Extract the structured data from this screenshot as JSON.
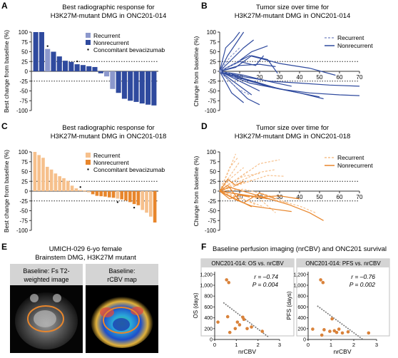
{
  "panels": {
    "A": {
      "letter": "A",
      "title_lines": [
        "Best radiographic response for",
        "H3K27M-mutant DMG in ONC201-014"
      ]
    },
    "B": {
      "letter": "B",
      "title_lines": [
        "Tumor size over time for",
        "H3K27M-mutant DMG in ONC201-014"
      ]
    },
    "C": {
      "letter": "C",
      "title_lines": [
        "Best radiographic response for",
        "H3K27M-mutant DMG in ONC201-018"
      ]
    },
    "D": {
      "letter": "D",
      "title_lines": [
        "Tumor size over time for",
        "H3K27M-mutant DMG in ONC201-018"
      ]
    },
    "E": {
      "letter": "E",
      "title_lines": [
        "UMICH-029 6-yo female",
        "Brainstem DMG, H3K27M mutant"
      ],
      "image_labels": [
        [
          "Baseline: Fs T2-",
          "weighted image"
        ],
        [
          "Baseline:",
          "rCBV map"
        ]
      ]
    },
    "F": {
      "letter": "F",
      "title": "Baseline perfusion imaging (nrCBV) and ONC201 survival"
    }
  },
  "colors": {
    "blue_recurrent": "#8c98cc",
    "blue_nonrecurrent": "#2f4a9e",
    "orange_recurrent": "#f6c08c",
    "orange_nonrecurrent": "#e8862c",
    "scatter_point": "#d9823a",
    "trend_line": "#777777",
    "grey_header": "#d4d4d4"
  },
  "chart_data": [
    {
      "id": "A",
      "type": "bar",
      "ylabel": "Best change from baseline (%)",
      "ylim": [
        -100,
        100
      ],
      "yticks": [
        100,
        75,
        50,
        25,
        0,
        -25,
        -50,
        -75,
        -100
      ],
      "reference_lines": [
        25,
        -25
      ],
      "legend": {
        "position": "top-right",
        "entries": [
          {
            "name": "Recurrent",
            "marker": "square",
            "color_key": "blue_recurrent"
          },
          {
            "name": "Nonrecurrent",
            "marker": "square",
            "color_key": "blue_nonrecurrent"
          },
          {
            "name": "Concomitant bevacizumab",
            "marker": "dot"
          }
        ]
      },
      "values": [
        100,
        100,
        57,
        50,
        38,
        27,
        24,
        18,
        16,
        13,
        11,
        -5,
        -13,
        -45,
        -55,
        -70,
        -75,
        -78,
        -82,
        -85,
        -87
      ],
      "groups": [
        "N",
        "N",
        "R",
        "N",
        "N",
        "N",
        "N",
        "N",
        "N",
        "N",
        "N",
        "N",
        "R",
        "R",
        "N",
        "N",
        "N",
        "N",
        "N",
        "N",
        "N"
      ],
      "bevacizumab": [
        2,
        7
      ]
    },
    {
      "id": "B",
      "type": "line",
      "ylabel": "Change from baseline (%)",
      "xlim": [
        0,
        70
      ],
      "ylim": [
        -100,
        100
      ],
      "xticks": [
        10,
        20,
        30,
        40,
        50,
        60,
        70
      ],
      "yticks": [
        100,
        75,
        50,
        25,
        0,
        -25,
        -50,
        -75,
        -100
      ],
      "reference_lines": [
        25,
        -25
      ],
      "legend": {
        "position": "top-right",
        "entries": [
          {
            "name": "Recurrent",
            "style": "dashed",
            "color_key": "blue_recurrent"
          },
          {
            "name": "Nonrecurrent",
            "style": "solid",
            "color_key": "blue_nonrecurrent"
          }
        ]
      },
      "series": [
        {
          "group": "N",
          "x": [
            0,
            4,
            8,
            12
          ],
          "y": [
            0,
            40,
            70,
            100
          ]
        },
        {
          "group": "N",
          "x": [
            0,
            3,
            7,
            10
          ],
          "y": [
            0,
            60,
            80,
            100
          ]
        },
        {
          "group": "N",
          "x": [
            0,
            6,
            12,
            17
          ],
          "y": [
            0,
            30,
            60,
            80
          ]
        },
        {
          "group": "N",
          "x": [
            0,
            8,
            16,
            24
          ],
          "y": [
            0,
            20,
            50,
            65
          ]
        },
        {
          "group": "N",
          "x": [
            0,
            8,
            16,
            24,
            29
          ],
          "y": [
            0,
            10,
            40,
            30,
            -5
          ]
        },
        {
          "group": "N",
          "x": [
            0,
            10,
            18,
            22
          ],
          "y": [
            0,
            25,
            15,
            40
          ]
        },
        {
          "group": "N",
          "x": [
            0,
            10,
            20,
            28
          ],
          "y": [
            0,
            15,
            18,
            12
          ]
        },
        {
          "group": "N",
          "x": [
            0,
            10,
            20
          ],
          "y": [
            0,
            -25,
            -50
          ]
        },
        {
          "group": "N",
          "x": [
            0,
            8,
            14,
            20
          ],
          "y": [
            0,
            -40,
            -70,
            -85
          ]
        },
        {
          "group": "N",
          "x": [
            0,
            6,
            12
          ],
          "y": [
            0,
            -55,
            -80
          ]
        },
        {
          "group": "N",
          "x": [
            0,
            8,
            16
          ],
          "y": [
            0,
            -30,
            -60
          ]
        },
        {
          "group": "N",
          "x": [
            0,
            15,
            30,
            45,
            58
          ],
          "y": [
            0,
            40,
            20,
            8,
            -10
          ]
        },
        {
          "group": "N",
          "x": [
            0,
            15,
            30,
            45,
            60,
            70
          ],
          "y": [
            0,
            -30,
            -45,
            -55,
            -60,
            -62
          ]
        },
        {
          "group": "N",
          "x": [
            0,
            15,
            30,
            40,
            52
          ],
          "y": [
            0,
            -25,
            -45,
            -55,
            -70
          ]
        },
        {
          "group": "N",
          "x": [
            0,
            10,
            25,
            40,
            55,
            70
          ],
          "y": [
            0,
            -12,
            -25,
            -30,
            -35,
            -38
          ]
        },
        {
          "group": "N",
          "x": [
            0,
            12,
            22,
            35,
            50
          ],
          "y": [
            0,
            -20,
            -35,
            -50,
            -65
          ]
        },
        {
          "group": "N",
          "x": [
            0,
            10,
            20,
            30
          ],
          "y": [
            0,
            -15,
            -30,
            -45
          ]
        },
        {
          "group": "N",
          "x": [
            0,
            12,
            24,
            36
          ],
          "y": [
            0,
            -10,
            -25,
            -38
          ]
        },
        {
          "group": "R",
          "x": [
            0,
            5,
            10
          ],
          "y": [
            0,
            35,
            60
          ]
        },
        {
          "group": "R",
          "x": [
            0,
            6,
            11
          ],
          "y": [
            0,
            15,
            30
          ]
        },
        {
          "group": "R",
          "x": [
            0,
            4,
            9,
            15
          ],
          "y": [
            0,
            -20,
            -45,
            -60
          ]
        },
        {
          "group": "R",
          "x": [
            0,
            5,
            10
          ],
          "y": [
            0,
            -5,
            -25
          ]
        }
      ]
    },
    {
      "id": "C",
      "type": "bar",
      "ylabel": "Best change from baseline (%)",
      "ylim": [
        -100,
        100
      ],
      "yticks": [
        100,
        75,
        50,
        25,
        0,
        -25,
        -50,
        -75,
        -100
      ],
      "reference_lines": [
        25,
        -25
      ],
      "legend": {
        "position": "top-right",
        "entries": [
          {
            "name": "Recurrent",
            "marker": "square",
            "color_key": "orange_recurrent"
          },
          {
            "name": "Nonrecurrent",
            "marker": "square",
            "color_key": "orange_nonrecurrent"
          },
          {
            "name": "Concomitant bevacizumab",
            "marker": "dot"
          }
        ]
      },
      "values": [
        100,
        92,
        85,
        62,
        55,
        45,
        38,
        33,
        26,
        14,
        7,
        3,
        1,
        -3,
        -8,
        -12,
        -13,
        -14,
        -16,
        -17,
        -19,
        -21,
        -24,
        -28,
        -33,
        -36,
        -48,
        -55,
        -65,
        -80
      ],
      "groups": [
        "R",
        "R",
        "R",
        "R",
        "R",
        "R",
        "R",
        "R",
        "R",
        "R",
        "R",
        "R",
        "N",
        "R",
        "N",
        "N",
        "N",
        "N",
        "N",
        "N",
        "R",
        "N",
        "N",
        "N",
        "N",
        "N",
        "R",
        "R",
        "R",
        "N"
      ],
      "bevacizumab": [
        11,
        20,
        24
      ]
    },
    {
      "id": "D",
      "type": "line",
      "ylabel": "Change from baseline (%)",
      "xlim": [
        0,
        70
      ],
      "ylim": [
        -100,
        100
      ],
      "xticks": [
        10,
        20,
        30,
        40,
        50,
        60,
        70
      ],
      "yticks": [
        100,
        75,
        50,
        25,
        0,
        -25,
        -50,
        -75,
        -100
      ],
      "reference_lines": [
        25,
        -25
      ],
      "legend": {
        "position": "top-right",
        "entries": [
          {
            "name": "Recurrent",
            "style": "dashed",
            "color_key": "orange_recurrent"
          },
          {
            "name": "Nonrecurrent",
            "style": "solid",
            "color_key": "orange_nonrecurrent"
          }
        ]
      },
      "series": [
        {
          "group": "R",
          "x": [
            0,
            4,
            8
          ],
          "y": [
            0,
            45,
            95
          ]
        },
        {
          "group": "R",
          "x": [
            0,
            5,
            9
          ],
          "y": [
            0,
            60,
            85
          ]
        },
        {
          "group": "R",
          "x": [
            0,
            4,
            10
          ],
          "y": [
            0,
            30,
            75
          ]
        },
        {
          "group": "R",
          "x": [
            0,
            6,
            12
          ],
          "y": [
            0,
            35,
            60
          ]
        },
        {
          "group": "R",
          "x": [
            0,
            7,
            14
          ],
          "y": [
            0,
            25,
            50
          ]
        },
        {
          "group": "R",
          "x": [
            0,
            5,
            12,
            20
          ],
          "y": [
            0,
            20,
            38,
            45
          ]
        },
        {
          "group": "R",
          "x": [
            0,
            8,
            16
          ],
          "y": [
            0,
            15,
            28
          ]
        },
        {
          "group": "R",
          "x": [
            0,
            10,
            20,
            30
          ],
          "y": [
            0,
            35,
            70,
            80
          ]
        },
        {
          "group": "R",
          "x": [
            0,
            10,
            20,
            28
          ],
          "y": [
            0,
            25,
            48,
            55
          ]
        },
        {
          "group": "R",
          "x": [
            0,
            12,
            24,
            32
          ],
          "y": [
            0,
            20,
            40,
            38
          ]
        },
        {
          "group": "R",
          "x": [
            0,
            6,
            12,
            18
          ],
          "y": [
            0,
            -10,
            -20,
            -35
          ]
        },
        {
          "group": "R",
          "x": [
            0,
            8,
            16,
            22
          ],
          "y": [
            0,
            -15,
            -28,
            -40
          ]
        },
        {
          "group": "R",
          "x": [
            0,
            10,
            20,
            28
          ],
          "y": [
            0,
            -8,
            -20,
            -55
          ]
        },
        {
          "group": "R",
          "x": [
            0,
            15,
            30,
            40,
            48
          ],
          "y": [
            0,
            -12,
            -25,
            -38,
            -55
          ]
        },
        {
          "group": "R",
          "x": [
            0,
            12,
            24,
            34
          ],
          "y": [
            0,
            5,
            -10,
            -30
          ]
        },
        {
          "group": "N",
          "x": [
            0,
            4,
            8,
            12
          ],
          "y": [
            0,
            30,
            15,
            25
          ]
        },
        {
          "group": "N",
          "x": [
            0,
            5,
            10,
            15
          ],
          "y": [
            0,
            -20,
            -10,
            -15
          ]
        },
        {
          "group": "N",
          "x": [
            0,
            6,
            12,
            20,
            28
          ],
          "y": [
            0,
            -15,
            -30,
            -5,
            -20
          ]
        },
        {
          "group": "N",
          "x": [
            0,
            4,
            10,
            16
          ],
          "y": [
            0,
            15,
            -25,
            -40
          ]
        },
        {
          "group": "N",
          "x": [
            0,
            10,
            20,
            30,
            40
          ],
          "y": [
            0,
            -8,
            -15,
            -12,
            -20
          ]
        },
        {
          "group": "N",
          "x": [
            0,
            12,
            25,
            35,
            45,
            52
          ],
          "y": [
            0,
            -10,
            -20,
            -35,
            -55,
            -75
          ]
        },
        {
          "group": "N",
          "x": [
            0,
            8,
            16,
            26,
            36
          ],
          "y": [
            0,
            -22,
            -38,
            -45,
            -52
          ]
        },
        {
          "group": "N",
          "x": [
            0,
            5,
            15,
            25
          ],
          "y": [
            0,
            10,
            -5,
            -20
          ]
        }
      ]
    },
    {
      "id": "F1",
      "type": "scatter",
      "title": "ONC201-014: OS vs. nrCBV",
      "xlabel": "nrCBV",
      "ylabel": "OS (days)",
      "xlim": [
        0,
        3
      ],
      "ylim": [
        0,
        1250
      ],
      "xticks": [
        0,
        1,
        2,
        3
      ],
      "yticks": [
        0,
        200,
        400,
        600,
        800,
        1000,
        1200
      ],
      "stats": {
        "r": "r = –0.74",
        "p": "P = 0.004"
      },
      "trend": {
        "x": [
          0.4,
          2.5
        ],
        "y": [
          680,
          40
        ]
      },
      "points": [
        {
          "x": 0.55,
          "y": 1100
        },
        {
          "x": 0.65,
          "y": 1050
        },
        {
          "x": 0.6,
          "y": 420
        },
        {
          "x": 0.7,
          "y": 130
        },
        {
          "x": 0.95,
          "y": 200
        },
        {
          "x": 1.05,
          "y": 320
        },
        {
          "x": 1.15,
          "y": 270
        },
        {
          "x": 1.3,
          "y": 410
        },
        {
          "x": 1.35,
          "y": 370
        },
        {
          "x": 1.5,
          "y": 200
        },
        {
          "x": 1.7,
          "y": 230
        },
        {
          "x": 2.2,
          "y": 150
        },
        {
          "x": 0.15,
          "y": 320
        }
      ]
    },
    {
      "id": "F2",
      "type": "scatter",
      "title": "ONC201-014: PFS vs. nrCBV",
      "xlabel": "nrCBV",
      "ylabel": "PFS (days)",
      "xlim": [
        0,
        3
      ],
      "ylim": [
        0,
        1250
      ],
      "xticks": [
        0,
        1,
        2,
        3
      ],
      "yticks": [
        0,
        200,
        400,
        600,
        800,
        1000,
        1200
      ],
      "stats": {
        "r": "r = –0.76",
        "p": "P = 0.002"
      },
      "trend": {
        "x": [
          0.4,
          2.4
        ],
        "y": [
          620,
          0
        ]
      },
      "points": [
        {
          "x": 0.55,
          "y": 1100
        },
        {
          "x": 0.65,
          "y": 1050
        },
        {
          "x": 0.7,
          "y": 180
        },
        {
          "x": 0.6,
          "y": 80
        },
        {
          "x": 0.95,
          "y": 150
        },
        {
          "x": 1.05,
          "y": 380
        },
        {
          "x": 1.15,
          "y": 160
        },
        {
          "x": 1.25,
          "y": 130
        },
        {
          "x": 1.35,
          "y": 190
        },
        {
          "x": 1.5,
          "y": 120
        },
        {
          "x": 1.75,
          "y": 140
        },
        {
          "x": 2.65,
          "y": 120
        },
        {
          "x": 0.2,
          "y": 190
        }
      ]
    }
  ]
}
